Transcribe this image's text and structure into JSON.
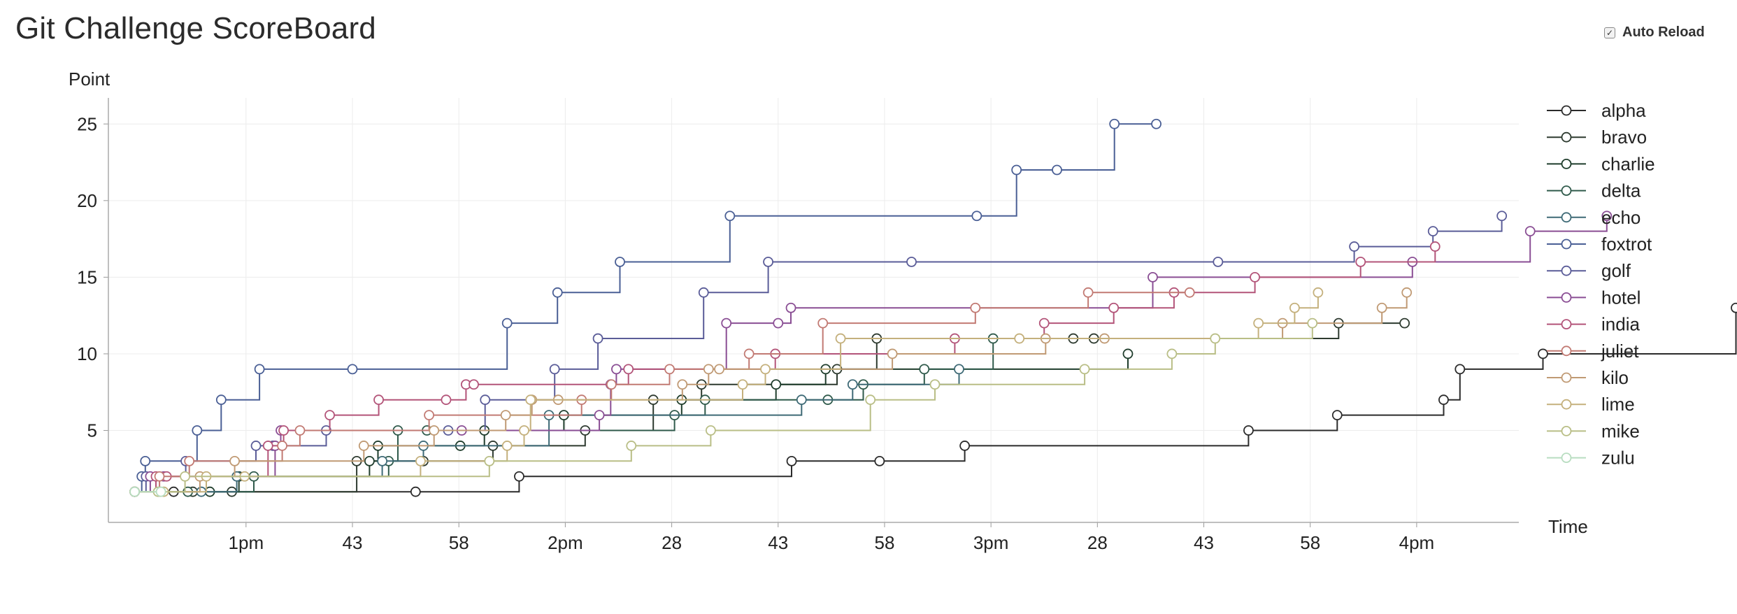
{
  "page": {
    "title": "Git Challenge ScoreBoard"
  },
  "controls": {
    "auto_reload_label": "Auto Reload",
    "auto_reload_checked": true
  },
  "chart_data": {
    "type": "line",
    "step": true,
    "title": "",
    "xlabel": "Time",
    "ylabel": "Point",
    "x_ticks": [
      {
        "m": 765,
        "label": "1pm"
      },
      {
        "m": 780,
        "label": "43"
      },
      {
        "m": 795,
        "label": "58"
      },
      {
        "m": 810,
        "label": "2pm"
      },
      {
        "m": 825,
        "label": "28"
      },
      {
        "m": 840,
        "label": "43"
      },
      {
        "m": 855,
        "label": "58"
      },
      {
        "m": 870,
        "label": "3pm"
      },
      {
        "m": 885,
        "label": "28"
      },
      {
        "m": 900,
        "label": "43"
      },
      {
        "m": 915,
        "label": "58"
      },
      {
        "m": 930,
        "label": "4pm"
      }
    ],
    "x_range_minutes": [
      745.6,
      944.4
    ],
    "y_ticks": [
      5,
      10,
      15,
      20,
      25
    ],
    "ylim": [
      -1,
      26.7
    ],
    "grid": true,
    "legend_position": "right",
    "series": [
      {
        "name": "alpha",
        "color": "#2b2b2b",
        "points": [
          [
            749.3,
            1
          ],
          [
            754.8,
            1
          ],
          [
            788.9,
            1
          ],
          [
            803.5,
            2
          ],
          [
            841.9,
            3
          ],
          [
            854.3,
            3
          ],
          [
            866.3,
            4
          ],
          [
            906.3,
            5
          ],
          [
            918.8,
            6
          ],
          [
            933.8,
            7
          ],
          [
            936.1,
            9
          ],
          [
            947.8,
            10
          ],
          [
            975.0,
            13
          ]
        ]
      },
      {
        "name": "bravo",
        "color": "#2d3a2f",
        "points": [
          [
            749.3,
            1
          ],
          [
            757.5,
            1
          ],
          [
            763.0,
            1
          ],
          [
            780.6,
            3
          ],
          [
            790.0,
            3
          ],
          [
            799.8,
            4
          ],
          [
            812.8,
            5
          ],
          [
            822.4,
            7
          ],
          [
            829.2,
            8
          ],
          [
            848.3,
            9
          ],
          [
            853.9,
            11
          ],
          [
            881.6,
            11
          ],
          [
            884.5,
            11
          ],
          [
            919.0,
            12
          ],
          [
            928.3,
            12
          ]
        ]
      },
      {
        "name": "charlie",
        "color": "#1f3d2c",
        "points": [
          [
            749.3,
            1
          ],
          [
            759.9,
            1
          ],
          [
            764.0,
            2
          ],
          [
            782.4,
            3
          ],
          [
            783.6,
            4
          ],
          [
            795.2,
            4
          ],
          [
            798.6,
            5
          ],
          [
            809.8,
            6
          ],
          [
            826.4,
            7
          ],
          [
            839.7,
            8
          ],
          [
            846.7,
            9
          ],
          [
            889.3,
            10
          ]
        ]
      },
      {
        "name": "delta",
        "color": "#2f5a4b",
        "points": [
          [
            749.3,
            1
          ],
          [
            756.8,
            1
          ],
          [
            766.1,
            2
          ],
          [
            785.1,
            3
          ],
          [
            786.4,
            5
          ],
          [
            790.5,
            5
          ],
          [
            825.4,
            6
          ],
          [
            829.7,
            7
          ],
          [
            847.0,
            7
          ],
          [
            852.0,
            8
          ],
          [
            860.6,
            9
          ],
          [
            870.3,
            11
          ]
        ]
      },
      {
        "name": "echo",
        "color": "#3e6a76",
        "points": [
          [
            749.3,
            1
          ],
          [
            758.7,
            1
          ],
          [
            763.7,
            2
          ],
          [
            784.2,
            3
          ],
          [
            790.0,
            4
          ],
          [
            807.7,
            6
          ],
          [
            843.3,
            7
          ],
          [
            850.5,
            8
          ],
          [
            865.5,
            9
          ]
        ]
      },
      {
        "name": "foxtrot",
        "color": "#4a5f95",
        "points": [
          [
            749.3,
            1
          ],
          [
            750.3,
            2
          ],
          [
            750.8,
            3
          ],
          [
            758.1,
            5
          ],
          [
            761.5,
            7
          ],
          [
            766.9,
            9
          ],
          [
            780.0,
            9
          ],
          [
            801.8,
            12
          ],
          [
            808.9,
            14
          ],
          [
            817.7,
            16
          ],
          [
            833.2,
            19
          ],
          [
            868.0,
            19
          ],
          [
            873.6,
            22
          ],
          [
            879.3,
            22
          ],
          [
            887.4,
            25
          ],
          [
            893.3,
            25
          ]
        ]
      },
      {
        "name": "golf",
        "color": "#5a5c98",
        "points": [
          [
            749.3,
            1
          ],
          [
            750.9,
            2
          ],
          [
            756.5,
            3
          ],
          [
            766.4,
            4
          ],
          [
            768.8,
            4
          ],
          [
            776.3,
            5
          ],
          [
            793.5,
            5
          ],
          [
            798.7,
            7
          ],
          [
            808.5,
            9
          ],
          [
            814.6,
            11
          ],
          [
            829.5,
            14
          ],
          [
            838.6,
            16
          ],
          [
            858.8,
            16
          ],
          [
            902.0,
            16
          ],
          [
            921.2,
            17
          ],
          [
            932.3,
            18
          ],
          [
            942.0,
            19
          ]
        ]
      },
      {
        "name": "hotel",
        "color": "#8a4e94",
        "points": [
          [
            749.3,
            1
          ],
          [
            751.5,
            2
          ],
          [
            753.4,
            2
          ],
          [
            769.1,
            4
          ],
          [
            769.9,
            5
          ],
          [
            795.4,
            5
          ],
          [
            814.8,
            6
          ],
          [
            816.4,
            8
          ],
          [
            817.2,
            9
          ],
          [
            832.7,
            12
          ],
          [
            840.0,
            12
          ],
          [
            841.8,
            13
          ],
          [
            892.8,
            15
          ],
          [
            929.4,
            16
          ],
          [
            946.0,
            18
          ],
          [
            956.8,
            19
          ]
        ]
      },
      {
        "name": "india",
        "color": "#b35479",
        "points": [
          [
            749.3,
            1
          ],
          [
            752.3,
            2
          ],
          [
            753.8,
            2
          ],
          [
            768.1,
            4
          ],
          [
            770.3,
            5
          ],
          [
            776.8,
            6
          ],
          [
            783.7,
            7
          ],
          [
            793.2,
            7
          ],
          [
            796.0,
            8
          ],
          [
            797.1,
            8
          ],
          [
            818.9,
            9
          ],
          [
            839.6,
            10
          ],
          [
            864.9,
            11
          ],
          [
            877.5,
            12
          ],
          [
            887.3,
            13
          ],
          [
            895.8,
            14
          ],
          [
            907.2,
            15
          ],
          [
            922.1,
            16
          ],
          [
            932.6,
            17
          ]
        ]
      },
      {
        "name": "juliet",
        "color": "#c27a73",
        "points": [
          [
            749.3,
            1
          ],
          [
            752.8,
            2
          ],
          [
            757.0,
            3
          ],
          [
            770.1,
            4
          ],
          [
            772.6,
            5
          ],
          [
            790.8,
            6
          ],
          [
            812.3,
            7
          ],
          [
            816.5,
            8
          ],
          [
            824.7,
            9
          ],
          [
            835.9,
            10
          ],
          [
            846.3,
            12
          ],
          [
            867.8,
            13
          ],
          [
            883.7,
            14
          ],
          [
            898.0,
            14
          ]
        ]
      },
      {
        "name": "kilo",
        "color": "#c09a74",
        "points": [
          [
            749.3,
            1
          ],
          [
            752.9,
            1
          ],
          [
            758.5,
            2
          ],
          [
            763.4,
            3
          ],
          [
            781.6,
            4
          ],
          [
            791.5,
            5
          ],
          [
            801.6,
            6
          ],
          [
            805.3,
            7
          ],
          [
            809.0,
            7
          ],
          [
            826.5,
            8
          ],
          [
            830.2,
            9
          ],
          [
            831.7,
            9
          ],
          [
            856.1,
            10
          ],
          [
            877.7,
            11
          ],
          [
            886.0,
            11
          ],
          [
            911.1,
            12
          ],
          [
            925.1,
            13
          ],
          [
            928.6,
            14
          ]
        ]
      },
      {
        "name": "lime",
        "color": "#c4b07c",
        "points": [
          [
            749.3,
            1
          ],
          [
            753.4,
            1
          ],
          [
            759.4,
            2
          ],
          [
            764.8,
            2
          ],
          [
            789.6,
            3
          ],
          [
            801.8,
            4
          ],
          [
            804.2,
            5
          ],
          [
            805.1,
            7
          ],
          [
            835.0,
            8
          ],
          [
            838.2,
            9
          ],
          [
            848.8,
            11
          ],
          [
            874.0,
            11
          ],
          [
            907.7,
            12
          ],
          [
            912.8,
            13
          ],
          [
            916.1,
            14
          ]
        ]
      },
      {
        "name": "mike",
        "color": "#b9be86",
        "points": [
          [
            749.3,
            1
          ],
          [
            752.6,
            1
          ],
          [
            756.4,
            2
          ],
          [
            799.3,
            3
          ],
          [
            819.3,
            4
          ],
          [
            830.5,
            5
          ],
          [
            853.0,
            7
          ],
          [
            862.1,
            8
          ],
          [
            883.2,
            9
          ],
          [
            895.5,
            10
          ],
          [
            901.6,
            11
          ],
          [
            915.3,
            12
          ]
        ]
      },
      {
        "name": "zulu",
        "color": "#b8ddc0",
        "points": [
          [
            749.3,
            1
          ],
          [
            753.0,
            1
          ]
        ]
      }
    ]
  }
}
